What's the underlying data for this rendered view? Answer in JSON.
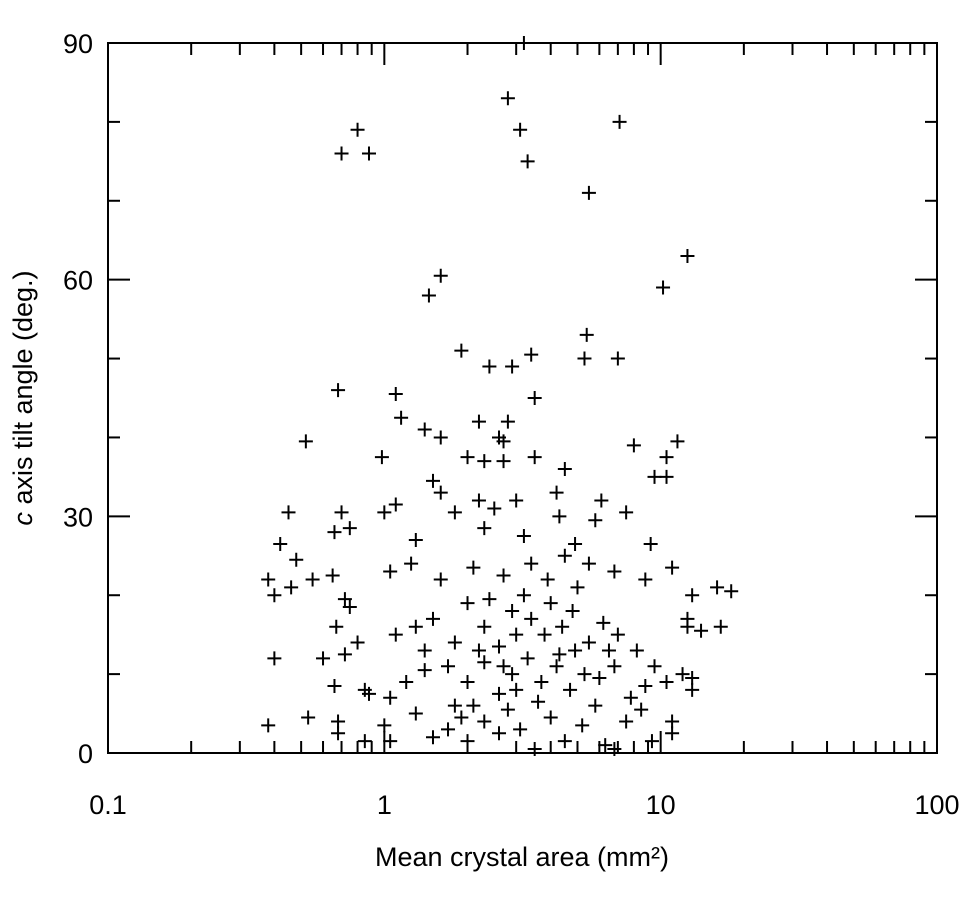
{
  "chart_data": {
    "type": "scatter",
    "xlabel": "Mean crystal area (mm²)",
    "ylabel": {
      "italic": "c",
      "rest": " axis tilt angle (deg.)"
    },
    "xscale": "log",
    "xlim": [
      0.1,
      100
    ],
    "ylim": [
      0,
      90
    ],
    "xticks": [
      0.1,
      1,
      10,
      100
    ],
    "yticks": [
      0,
      30,
      60,
      90
    ],
    "xminor_ticks": [
      0.2,
      0.3,
      0.4,
      0.5,
      0.6,
      0.7,
      0.8,
      0.9,
      2,
      3,
      4,
      5,
      6,
      7,
      8,
      9,
      20,
      30,
      40,
      50,
      60,
      70,
      80,
      90
    ],
    "yminor_ticks": [
      10,
      20,
      40,
      50,
      70,
      80
    ],
    "marker": "plus",
    "color": "#000000",
    "grid": false,
    "x": [
      0.8,
      0.7,
      0.88,
      2.8,
      3.1,
      3.3,
      7.1,
      5.5,
      12.5,
      1.6,
      1.45,
      10.2,
      5.4,
      1.9,
      3.4,
      5.3,
      7,
      2.9,
      2.4,
      0.68,
      1.1,
      3.5,
      1.15,
      2.8,
      2.2,
      0.52,
      1.4,
      1.6,
      2.6,
      2.7,
      8,
      11.5,
      10.5,
      0.98,
      2,
      2.3,
      2.7,
      3.5,
      4.5,
      9.5,
      10.5,
      1.5,
      1.6,
      2.2,
      3,
      4.2,
      6.1,
      0.45,
      0.7,
      1,
      1.1,
      1.8,
      2.5,
      4.3,
      5.8,
      7.5,
      0.66,
      0.75,
      1.3,
      2.3,
      3.2,
      4.9,
      9.2,
      0.42,
      0.48,
      0.38,
      0.4,
      0.46,
      0.55,
      0.65,
      0.72,
      0.75,
      1.05,
      1.25,
      1.6,
      2.1,
      2.7,
      3.4,
      4.5,
      5.5,
      6.8,
      8.8,
      11,
      16,
      18,
      13,
      0.8,
      0.67,
      0.4,
      0.6,
      0.72,
      1.1,
      1.3,
      1.5,
      1.8,
      2,
      2.3,
      2.6,
      2.9,
      3.2,
      3.4,
      3.8,
      4.3,
      4.8,
      5.5,
      6.2,
      7,
      8.2,
      9.5,
      12.5,
      12.5,
      16.5,
      14,
      0.66,
      0.85,
      0.88,
      1.05,
      1.2,
      1.4,
      1.7,
      2,
      2.3,
      2.6,
      2.9,
      3.3,
      3.7,
      4.2,
      4.7,
      5.3,
      6,
      6.8,
      7.8,
      8.8,
      10.5,
      12,
      13,
      13,
      0.38,
      0.53,
      0.68,
      0.68,
      0.85,
      1,
      1.05,
      1.3,
      1.5,
      1.7,
      2,
      2.3,
      2.6,
      2.8,
      3.1,
      3.5,
      4,
      4.5,
      5.2,
      6.3,
      6.8,
      7.5,
      8.5,
      9.3,
      11,
      11,
      3.2,
      1.8,
      2.2,
      3,
      4,
      5,
      3.6,
      2.4,
      1.9,
      5.8,
      4.9,
      3,
      2.1,
      4.4,
      6.5,
      2.7,
      3.9,
      1.4
    ],
    "values": [
      79,
      76,
      76,
      83,
      79,
      75,
      80,
      71,
      63,
      60.5,
      58,
      59,
      53,
      51,
      50.5,
      50,
      50,
      49,
      49,
      46,
      45.5,
      45,
      42.5,
      42,
      42,
      39.5,
      41,
      40,
      40,
      39.5,
      39,
      39.5,
      37.5,
      37.5,
      37.5,
      37,
      37,
      37.5,
      36,
      35,
      35,
      34.5,
      33,
      32,
      32,
      33,
      32,
      30.5,
      30.5,
      30.5,
      31.5,
      30.5,
      31,
      30,
      29.5,
      30.5,
      28,
      28.5,
      27,
      28.5,
      27.5,
      26.5,
      26.5,
      26.5,
      24.5,
      22,
      20,
      21,
      22,
      22.5,
      19.5,
      18.5,
      23,
      24,
      22,
      23.5,
      22.5,
      24,
      25,
      24,
      23,
      22,
      23.5,
      21,
      20.5,
      20,
      14,
      16,
      12,
      12,
      12.5,
      15,
      16,
      17,
      14,
      19,
      16,
      13.5,
      18,
      20,
      17,
      15,
      12.5,
      18,
      14,
      16.5,
      15,
      13,
      11,
      17,
      16,
      16,
      15.5,
      8.5,
      8,
      7.5,
      7,
      9,
      10.5,
      11,
      9,
      11.5,
      7.5,
      10,
      12,
      9,
      11,
      8,
      10,
      9.5,
      11,
      7,
      8.5,
      9,
      10,
      9.5,
      8,
      3.5,
      4.5,
      4,
      2.5,
      1.5,
      3.5,
      1.5,
      5,
      2,
      3,
      1.5,
      4,
      2.5,
      5.5,
      3,
      0.5,
      4.5,
      1.5,
      3.5,
      1,
      0.5,
      4,
      5.5,
      1.5,
      2.5,
      4,
      90,
      6,
      13,
      15,
      19,
      21,
      6.5,
      19.5,
      4.5,
      6,
      13,
      8,
      6,
      16,
      13,
      11,
      22,
      13
    ]
  }
}
